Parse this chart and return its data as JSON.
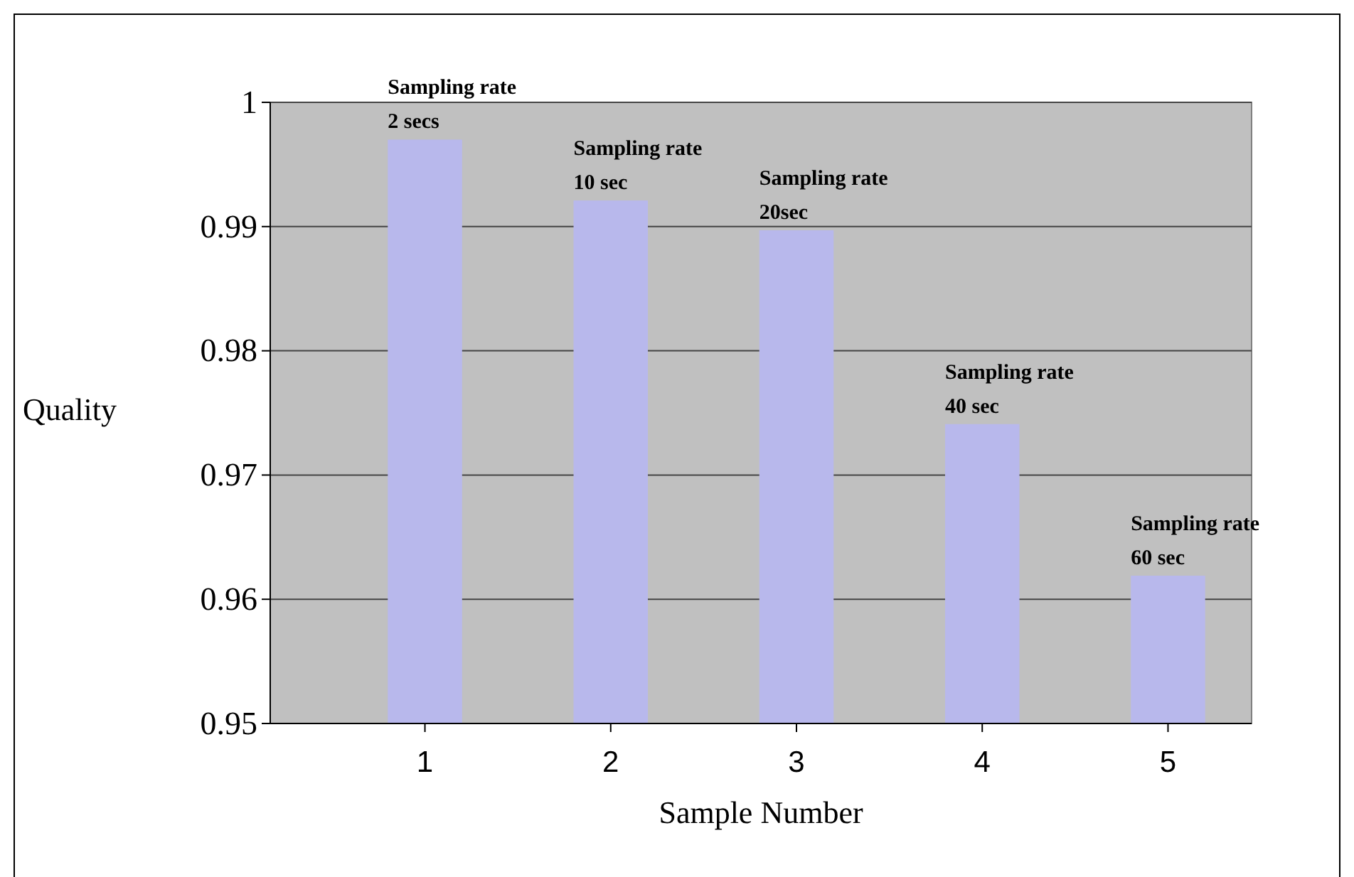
{
  "chart_data": {
    "type": "bar",
    "xlabel": "Sample Number",
    "ylabel": "Quality",
    "categories": [
      "1",
      "2",
      "3",
      "4",
      "5"
    ],
    "values": [
      0.997,
      0.9921,
      0.9897,
      0.9741,
      0.9619
    ],
    "color": "#b8b8ec",
    "ylim": [
      0.95,
      1
    ],
    "yticks": [
      0.95,
      0.96,
      0.97,
      0.98,
      0.99,
      1
    ],
    "grid": "y",
    "annotations": [
      {
        "text": "Sampling rate 2 secs",
        "x": "1",
        "y": 0.997
      },
      {
        "text": "Sampling rate 10 sec",
        "x": "2",
        "y": 0.9921
      },
      {
        "text": "Sampling rate 20sec",
        "x": "3",
        "y": 0.9897
      },
      {
        "text": "Sampling rate 40 sec",
        "x": "4",
        "y": 0.9741
      },
      {
        "text": "Sampling rate 60 sec",
        "x": "5",
        "y": 0.9619
      }
    ]
  }
}
